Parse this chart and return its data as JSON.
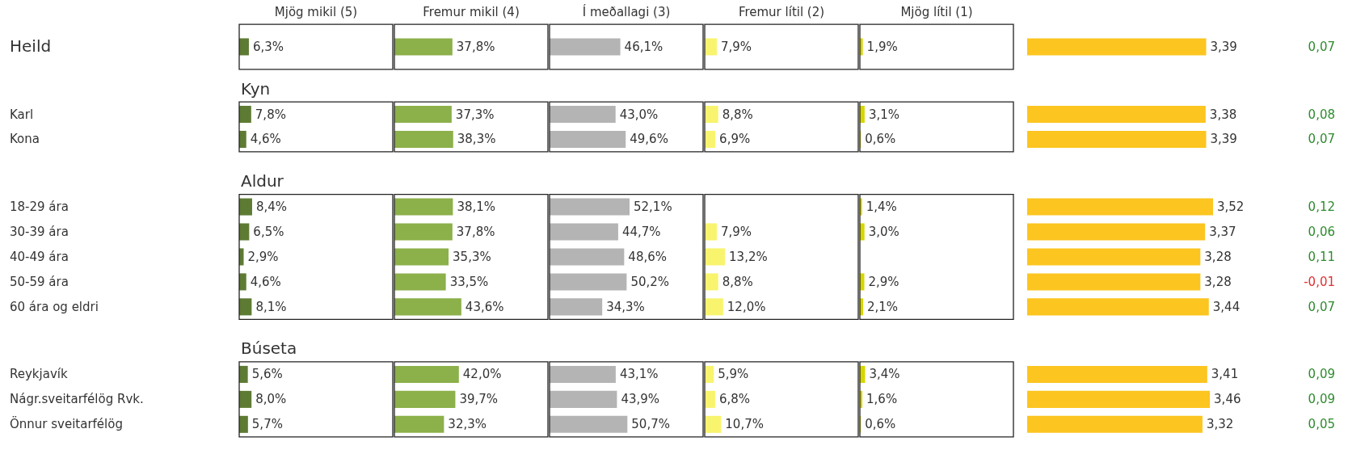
{
  "chart_data": [
    {
      "type": "bar",
      "orientation": "horizontal",
      "title": "Mjög mikil (5)",
      "tick_labels": "y",
      "xlim": [
        0,
        100
      ],
      "color": "#5e7b34",
      "categories": [
        "Heild",
        "Kyn",
        "Karl",
        "Kona",
        "Aldur",
        "18-29 ára",
        "30-39 ára",
        "40-49 ára",
        "50-59 ára",
        "60 ára og eldri",
        "Búseta",
        "Reykjavík",
        "Nágr.sveitarfélög Rvk.",
        "Önnur sveitarfélög"
      ],
      "values": [
        6.3,
        null,
        7.8,
        4.6,
        null,
        8.4,
        6.5,
        2.9,
        4.6,
        8.1,
        null,
        5.6,
        8.0,
        5.7
      ],
      "value_labels": [
        "6,3%",
        null,
        "7,8%",
        "4,6%",
        null,
        "8,4%",
        "6,5%",
        "2,9%",
        "4,6%",
        "8,1%",
        null,
        "5,6%",
        "8,0%",
        "5,7%"
      ]
    },
    {
      "type": "bar",
      "orientation": "horizontal",
      "title": "Fremur mikil (4)",
      "tick_labels": false,
      "xlim": [
        0,
        100
      ],
      "color": "#8cb04a",
      "values": [
        37.8,
        null,
        37.3,
        38.3,
        null,
        38.1,
        37.8,
        35.3,
        33.5,
        43.6,
        null,
        42.0,
        39.7,
        32.3
      ],
      "value_labels": [
        "37,8%",
        null,
        "37,3%",
        "38,3%",
        null,
        "38,1%",
        "37,8%",
        "35,3%",
        "33,5%",
        "43,6%",
        null,
        "42,0%",
        "39,7%",
        "32,3%"
      ]
    },
    {
      "type": "bar",
      "orientation": "horizontal",
      "title": "Í meðallagi (3)",
      "tick_labels": false,
      "xlim": [
        0,
        100
      ],
      "color": "#b4b4b4",
      "values": [
        46.1,
        null,
        43.0,
        49.6,
        null,
        52.1,
        44.7,
        48.6,
        50.2,
        34.3,
        null,
        43.1,
        43.9,
        50.7
      ],
      "value_labels": [
        "46,1%",
        null,
        "43,0%",
        "49,6%",
        null,
        "52,1%",
        "44,7%",
        "48,6%",
        "50,2%",
        "34,3%",
        null,
        "43,1%",
        "43,9%",
        "50,7%"
      ]
    },
    {
      "type": "bar",
      "orientation": "horizontal",
      "title": "Fremur lítil (2)",
      "tick_labels": false,
      "xlim": [
        0,
        100
      ],
      "color": "#f8f46e",
      "values": [
        7.9,
        null,
        8.8,
        6.9,
        null,
        null,
        7.9,
        13.2,
        8.8,
        12.0,
        null,
        5.9,
        6.8,
        10.7
      ],
      "value_labels": [
        "7,9%",
        null,
        "8,8%",
        "6,9%",
        null,
        null,
        "7,9%",
        "13,2%",
        "8,8%",
        "12,0%",
        null,
        "5,9%",
        "6,8%",
        "10,7%"
      ]
    },
    {
      "type": "bar",
      "orientation": "horizontal",
      "title": "Mjög lítil (1)",
      "tick_labels": false,
      "xlim": [
        0,
        100
      ],
      "color": "#d6d600",
      "values": [
        1.9,
        null,
        3.1,
        0.6,
        null,
        1.4,
        3.0,
        null,
        2.9,
        2.1,
        null,
        3.4,
        1.6,
        0.6
      ],
      "value_labels": [
        "1,9%",
        null,
        "3,1%",
        "0,6%",
        null,
        "1,4%",
        "3,0%",
        null,
        "2,9%",
        "2,1%",
        null,
        "3,4%",
        "1,6%",
        "0,6%"
      ]
    },
    {
      "type": "bar",
      "orientation": "horizontal",
      "tick_labels": false,
      "color": "#fcc520",
      "values": [
        3.39,
        null,
        3.38,
        3.39,
        null,
        3.52,
        3.37,
        3.28,
        3.28,
        3.44,
        null,
        3.41,
        3.46,
        3.32
      ],
      "value_labels": [
        "3,39",
        null,
        "3,38",
        "3,39",
        null,
        "3,52",
        "3,37",
        "3,28",
        "3,28",
        "3,44",
        null,
        "3,41",
        "3,46",
        "3,32"
      ]
    },
    {
      "type": "other",
      "values": [
        0.07,
        null,
        0.08,
        0.07,
        null,
        0.12,
        0.06,
        0.11,
        -0.01,
        0.07,
        null,
        0.09,
        0.09,
        0.05
      ],
      "value_labels": [
        "0,07",
        null,
        "0,08",
        "0,07",
        null,
        "0,12",
        "0,06",
        "0,11",
        "-0,01",
        "0,07",
        null,
        "0,09",
        "0,09",
        "0,05"
      ],
      "colors": [
        "#2e8b2e",
        null,
        "#2e8b2e",
        "#2e8b2e",
        null,
        "#2e8b2e",
        "#2e8b2e",
        "#2e8b2e",
        "#e03030",
        "#2e8b2e",
        null,
        "#2e8b2e",
        "#2e8b2e",
        "#2e8b2e"
      ]
    }
  ]
}
